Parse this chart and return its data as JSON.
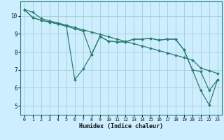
{
  "background_color": "#cceeff",
  "grid_color": "#aacccc",
  "line_color": "#2e7d6e",
  "xlabel": "Humidex (Indice chaleur)",
  "xlim": [
    -0.5,
    23.5
  ],
  "ylim": [
    4.5,
    10.8
  ],
  "yticks": [
    5,
    6,
    7,
    8,
    9,
    10
  ],
  "xticks": [
    0,
    1,
    2,
    3,
    4,
    5,
    6,
    7,
    8,
    9,
    10,
    11,
    12,
    13,
    14,
    15,
    16,
    17,
    18,
    19,
    20,
    21,
    22,
    23
  ],
  "series": [
    {
      "x": [
        0,
        1,
        2,
        3,
        4,
        5,
        6,
        7,
        8,
        9,
        10,
        11,
        12,
        13,
        14,
        15,
        16,
        17,
        18,
        19,
        20,
        21,
        22,
        23
      ],
      "y": [
        10.35,
        10.2,
        9.85,
        9.72,
        9.6,
        9.48,
        9.35,
        9.22,
        9.1,
        8.97,
        8.84,
        8.71,
        8.58,
        8.45,
        8.33,
        8.2,
        8.07,
        7.94,
        7.81,
        7.68,
        7.55,
        7.1,
        6.95,
        6.8
      ]
    },
    {
      "x": [
        0,
        1,
        2,
        3,
        4,
        5,
        6,
        7,
        8,
        9,
        10,
        11,
        12,
        13,
        14,
        15,
        16,
        17,
        18,
        19,
        20,
        21,
        22,
        23
      ],
      "y": [
        10.35,
        9.9,
        9.75,
        9.65,
        9.55,
        9.42,
        6.45,
        7.05,
        7.85,
        8.85,
        8.6,
        8.55,
        8.55,
        8.7,
        8.7,
        8.75,
        8.65,
        8.7,
        8.7,
        8.1,
        7.0,
        5.85,
        5.05,
        6.45
      ]
    },
    {
      "x": [
        0,
        1,
        2,
        3,
        4,
        5,
        6,
        7,
        8,
        9,
        10,
        11,
        12,
        13,
        14,
        15,
        16,
        17,
        18,
        19,
        20,
        21,
        22,
        23
      ],
      "y": [
        10.35,
        9.9,
        9.75,
        9.65,
        9.55,
        9.42,
        9.28,
        9.15,
        7.85,
        8.85,
        8.6,
        8.55,
        8.55,
        8.7,
        8.7,
        8.75,
        8.65,
        8.7,
        8.7,
        8.1,
        7.0,
        6.9,
        5.85,
        6.45
      ]
    }
  ]
}
